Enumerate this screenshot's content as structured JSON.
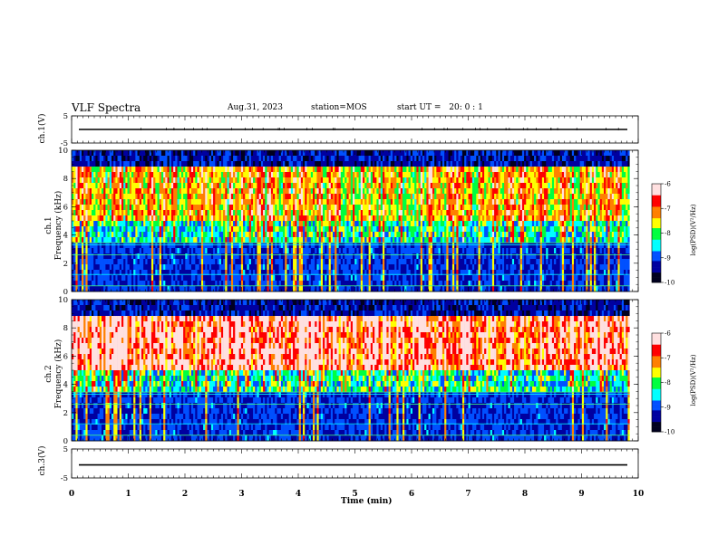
{
  "header": {
    "title": "VLF Spectra",
    "date": "Aug.31, 2023",
    "station_label": "station=",
    "station": "MOS",
    "start_label": "start UT =",
    "start_time": "20: 0 : 1"
  },
  "chart_data": [
    {
      "type": "line",
      "name": "ch.1 waveform",
      "ylabel": "ch.1(V)",
      "ylim": [
        -5,
        5
      ],
      "yticks": [
        "5",
        "-5"
      ],
      "baseline_value": 0,
      "color": "#000000"
    },
    {
      "type": "heatmap",
      "name": "ch.1 spectrogram",
      "ylabel": "ch.1\nFrequency (kHz)",
      "ylabel_lines": [
        "ch.1",
        "Frequency (kHz)"
      ],
      "ylim": [
        0,
        10
      ],
      "yticks": [
        "0",
        "2",
        "4",
        "6",
        "8",
        "10"
      ],
      "colorbar": {
        "label": "log(PSD)(V²/Hz)",
        "range": [
          -10,
          -6
        ],
        "ticks": [
          "-6",
          "-7",
          "-8",
          "-9",
          "-10"
        ]
      }
    },
    {
      "type": "heatmap",
      "name": "ch.2 spectrogram",
      "ylabel": "ch.2\nFrequency (kHz)",
      "ylabel_lines": [
        "ch.2",
        "Frequency (kHz)"
      ],
      "ylim": [
        0,
        10
      ],
      "yticks": [
        "0",
        "2",
        "4",
        "6",
        "8",
        "10"
      ],
      "colorbar": {
        "label": "log(PSD)(V²/Hz)",
        "range": [
          -10,
          -6
        ],
        "ticks": [
          "-6",
          "-7",
          "-8",
          "-9",
          "-10"
        ]
      }
    },
    {
      "type": "line",
      "name": "ch.3 waveform",
      "ylabel": "ch.3(V)",
      "ylim": [
        -5,
        5
      ],
      "yticks": [
        "5",
        "-5"
      ],
      "baseline_value": -0.5,
      "color": "#000000"
    }
  ],
  "x_axis": {
    "label": "Time  (min)",
    "range": [
      0,
      10
    ],
    "ticks": [
      "0",
      "1",
      "2",
      "3",
      "4",
      "5",
      "6",
      "7",
      "8",
      "9",
      "10"
    ],
    "data_end_min": 9.85
  },
  "colormap": [
    "#000020",
    "#0000a0",
    "#0050ff",
    "#00ffff",
    "#00ff40",
    "#ffff00",
    "#ff8000",
    "#ff0000",
    "#ffe0e0"
  ]
}
